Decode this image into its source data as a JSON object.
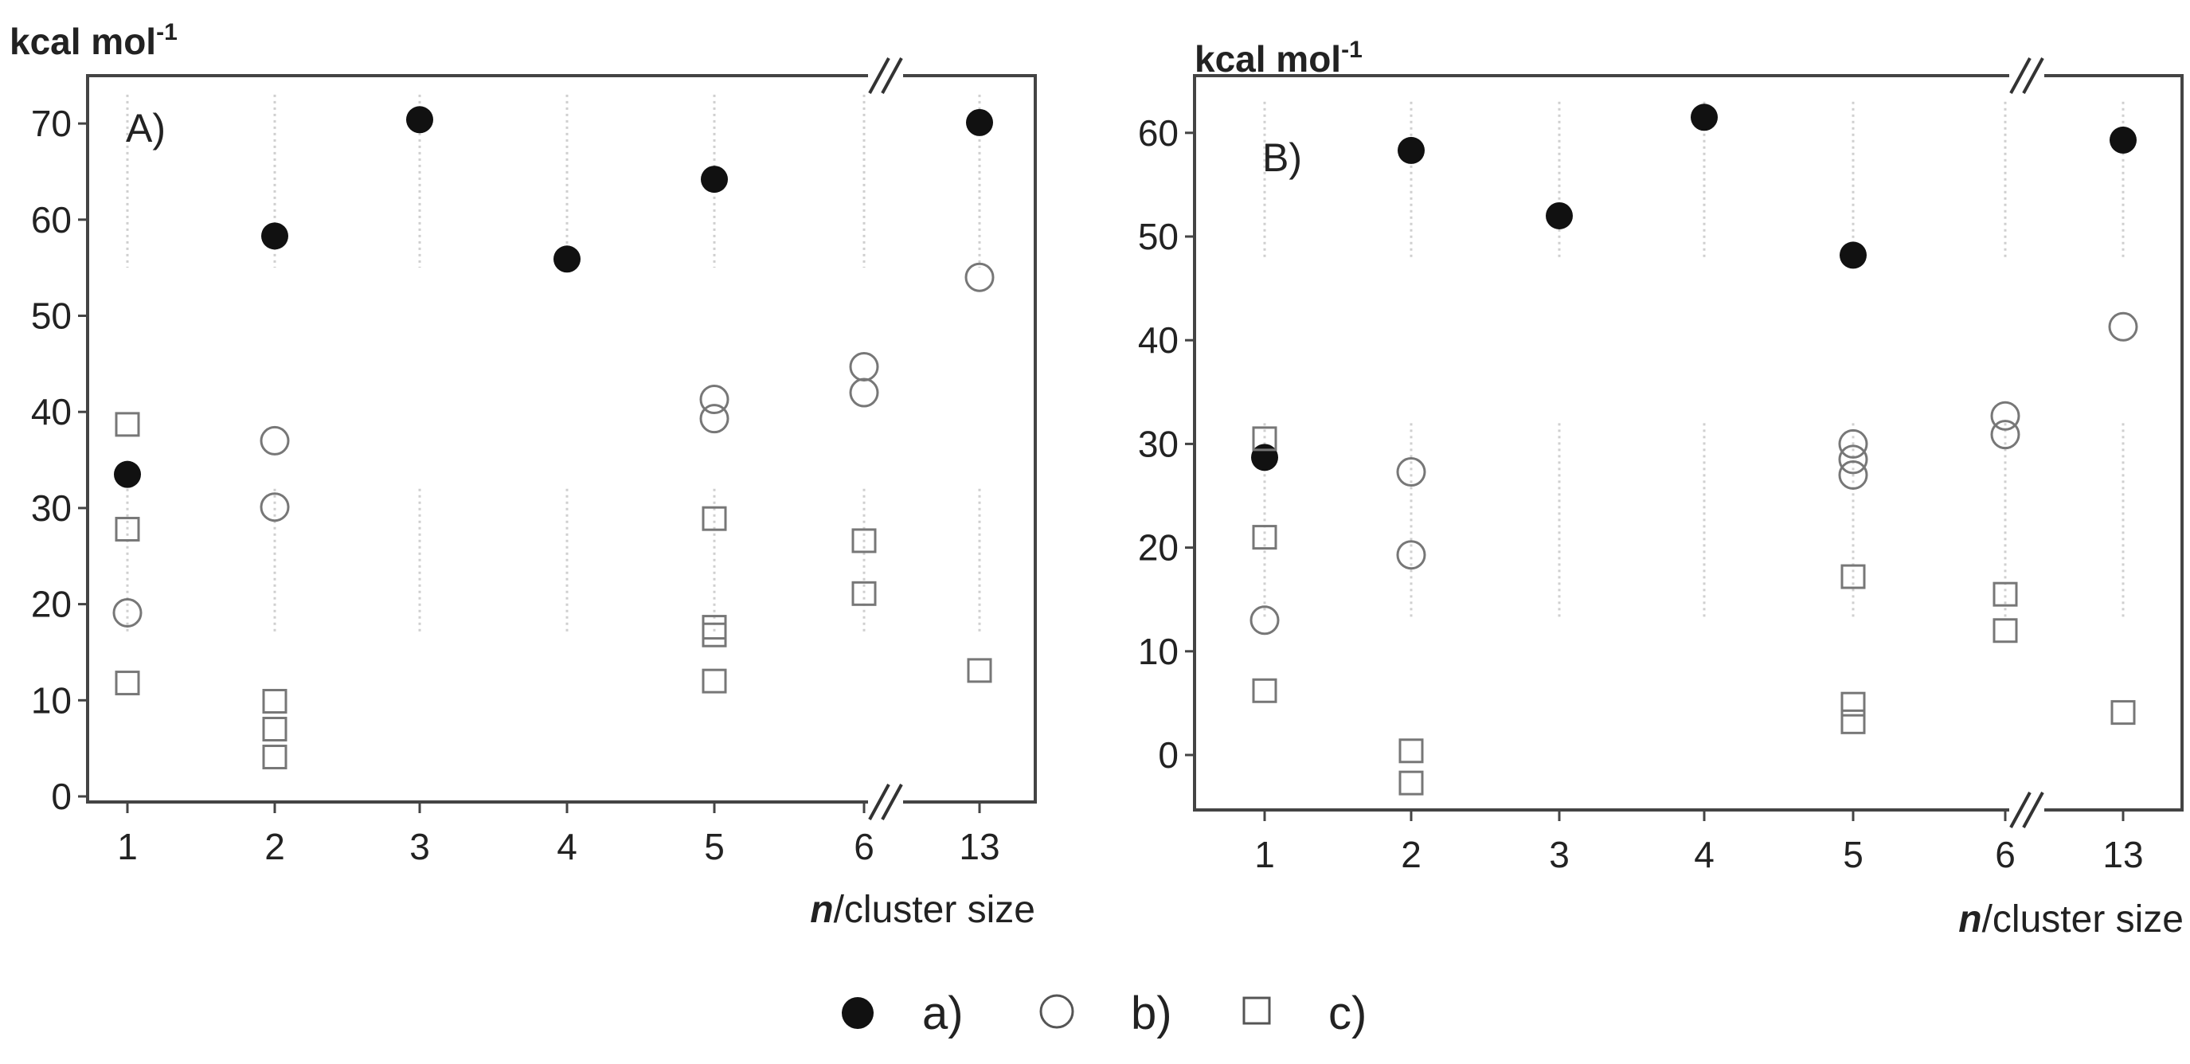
{
  "figure": {
    "legend": [
      {
        "marker": "filled-circle-icon",
        "label": "a)"
      },
      {
        "marker": "open-circle-icon",
        "label": "b)"
      },
      {
        "marker": "open-square-icon",
        "label": "c)"
      }
    ]
  },
  "chart_data": [
    {
      "type": "scatter",
      "panel_label": "A)",
      "unit_label": "kcal mol",
      "unit_superscript": "-1",
      "xlabel_italic": "n",
      "xlabel_rest": "/cluster size",
      "categories": [
        "1",
        "2",
        "3",
        "4",
        "5",
        "6",
        "13"
      ],
      "axis_break_between": [
        "6",
        "13"
      ],
      "yticks": [
        0,
        10,
        20,
        30,
        40,
        50,
        60,
        70
      ],
      "ylim": [
        0,
        74
      ],
      "grid": "light dotted vertical segments at each category",
      "series": [
        {
          "name": "a)",
          "marker": "filled-circle",
          "color": "#111111",
          "points": [
            [
              "1",
              33.5
            ],
            [
              "2",
              58.3
            ],
            [
              "3",
              70.4
            ],
            [
              "4",
              55.9
            ],
            [
              "5",
              64.2
            ],
            [
              "13",
              70.1
            ]
          ]
        },
        {
          "name": "b)",
          "marker": "open-circle",
          "color": "#777777",
          "points": [
            [
              "1",
              19.1
            ],
            [
              "2",
              37.0
            ],
            [
              "2",
              30.1
            ],
            [
              "5",
              41.3
            ],
            [
              "5",
              39.3
            ],
            [
              "6",
              44.7
            ],
            [
              "6",
              42.0
            ],
            [
              "13",
              54.0
            ]
          ]
        },
        {
          "name": "c)",
          "marker": "open-square",
          "color": "#777777",
          "points": [
            [
              "1",
              38.7
            ],
            [
              "1",
              27.8
            ],
            [
              "1",
              11.8
            ],
            [
              "2",
              9.9
            ],
            [
              "2",
              7.0
            ],
            [
              "2",
              4.1
            ],
            [
              "5",
              28.9
            ],
            [
              "5",
              17.6
            ],
            [
              "5",
              16.8
            ],
            [
              "5",
              12.0
            ],
            [
              "6",
              26.6
            ],
            [
              "6",
              21.1
            ],
            [
              "13",
              13.1
            ]
          ]
        }
      ]
    },
    {
      "type": "scatter",
      "panel_label": "B)",
      "unit_label": "kcal mol",
      "unit_superscript": "-1",
      "xlabel_italic": "n",
      "xlabel_rest": "/cluster size",
      "categories": [
        "1",
        "2",
        "3",
        "4",
        "5",
        "6",
        "13"
      ],
      "axis_break_between": [
        "6",
        "13"
      ],
      "yticks": [
        0,
        10,
        20,
        30,
        40,
        50,
        60
      ],
      "ylim": [
        -5,
        65
      ],
      "grid": "light dotted vertical segments at each category",
      "series": [
        {
          "name": "a)",
          "marker": "filled-circle",
          "color": "#111111",
          "points": [
            [
              "1",
              28.7
            ],
            [
              "2",
              58.3
            ],
            [
              "3",
              52.0
            ],
            [
              "4",
              61.5
            ],
            [
              "5",
              48.2
            ],
            [
              "13",
              59.3
            ]
          ]
        },
        {
          "name": "b)",
          "marker": "open-circle",
          "color": "#777777",
          "points": [
            [
              "1",
              13.0
            ],
            [
              "2",
              27.3
            ],
            [
              "2",
              19.3
            ],
            [
              "5",
              30.0
            ],
            [
              "5",
              28.5
            ],
            [
              "5",
              27.0
            ],
            [
              "6",
              32.7
            ],
            [
              "6",
              30.9
            ],
            [
              "13",
              41.3
            ]
          ]
        },
        {
          "name": "c)",
          "marker": "open-square",
          "color": "#777777",
          "points": [
            [
              "1",
              30.5
            ],
            [
              "1",
              21.0
            ],
            [
              "1",
              6.2
            ],
            [
              "2",
              0.4
            ],
            [
              "2",
              -2.7
            ],
            [
              "5",
              17.2
            ],
            [
              "5",
              4.9
            ],
            [
              "5",
              3.2
            ],
            [
              "6",
              15.5
            ],
            [
              "6",
              12.0
            ],
            [
              "13",
              4.1
            ]
          ]
        }
      ]
    }
  ]
}
